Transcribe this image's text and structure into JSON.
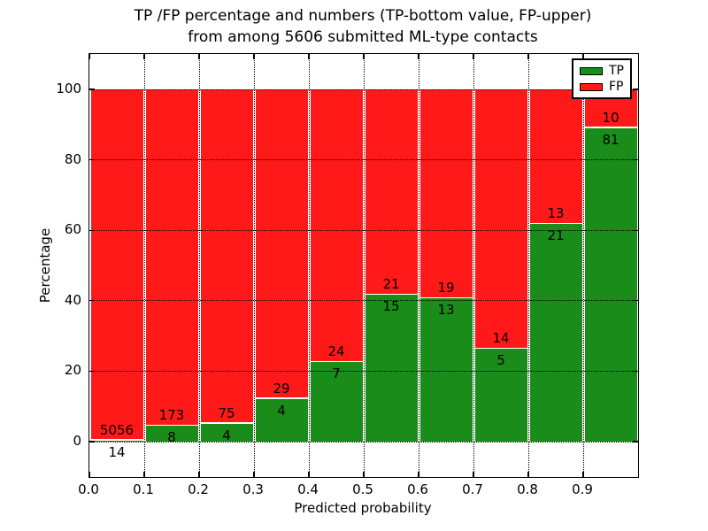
{
  "chart_data": {
    "type": "bar",
    "stacked": true,
    "title_lines": [
      "TP /FP percentage and numbers (TP-bottom value, FP-upper)",
      "from among 5606 submitted ML-type contacts"
    ],
    "xlabel": "Predicted probability",
    "ylabel": "Percentage",
    "total_submitted": 5606,
    "xlim": [
      0.0,
      1.0
    ],
    "ylim": [
      -10,
      110
    ],
    "bin_width": 0.1,
    "grid": true,
    "legend_position": "upper right",
    "categories": [
      "0.0-0.1",
      "0.1-0.2",
      "0.2-0.3",
      "0.3-0.4",
      "0.4-0.5",
      "0.5-0.6",
      "0.6-0.7",
      "0.7-0.8",
      "0.8-0.9",
      "0.9-1.0"
    ],
    "x_tick_labels": [
      "0.0",
      "0.1",
      "0.2",
      "0.3",
      "0.4",
      "0.5",
      "0.6",
      "0.7",
      "0.8",
      "0.9"
    ],
    "y_tick_values": [
      0,
      20,
      40,
      60,
      80,
      100
    ],
    "y_tick_labels": [
      "0",
      "20",
      "40",
      "60",
      "80",
      "100"
    ],
    "series": [
      {
        "name": "TP",
        "color": "#198C19",
        "counts": [
          14,
          8,
          4,
          4,
          7,
          15,
          13,
          5,
          21,
          81
        ]
      },
      {
        "name": "FP",
        "color": "#FF1919",
        "counts": [
          5056,
          173,
          75,
          29,
          24,
          21,
          19,
          14,
          13,
          10
        ]
      }
    ],
    "tp_percent_of_bin": [
      0.28,
      4.42,
      5.06,
      12.12,
      22.58,
      41.67,
      40.63,
      26.32,
      61.76,
      89.01
    ]
  },
  "style_colors": {
    "tp_green": "#198C19",
    "fp_red": "#FF1919",
    "axis_black": "#000000",
    "background": "#ffffff"
  }
}
